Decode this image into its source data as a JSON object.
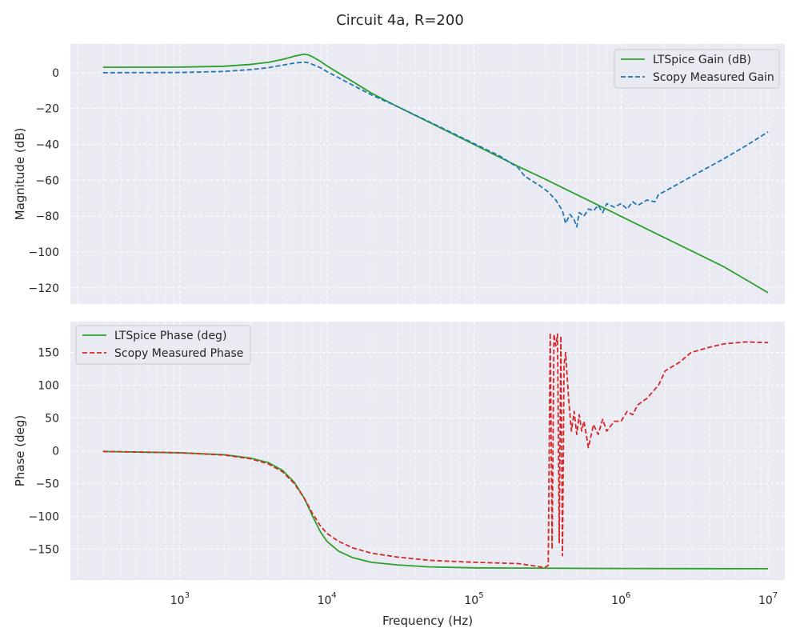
{
  "figure": {
    "title": "Circuit 4a, R=200"
  },
  "chart_data": [
    {
      "type": "line",
      "id": "gain",
      "title": "",
      "xlabel": "",
      "ylabel": "Magnitude (dB)",
      "xscale": "log",
      "xlim": [
        180,
        13000000
      ],
      "ylim": [
        -129,
        16
      ],
      "yticks": [
        0,
        -20,
        -40,
        -60,
        -80,
        -100,
        -120
      ],
      "ytick_labels": [
        "0",
        "−20",
        "−40",
        "−60",
        "−80",
        "−100",
        "−120"
      ],
      "grid": true,
      "legend_position": "top-right",
      "series": [
        {
          "name": "LTSpice Gain (dB)",
          "color": "#2ca02c",
          "style": "solid",
          "points": [
            [
              300,
              3
            ],
            [
              1000,
              3.1
            ],
            [
              2000,
              3.6
            ],
            [
              3000,
              4.6
            ],
            [
              4000,
              5.8
            ],
            [
              5000,
              7.4
            ],
            [
              6000,
              9.2
            ],
            [
              7000,
              10.3
            ],
            [
              7500,
              9.9
            ],
            [
              8000,
              8.8
            ],
            [
              9000,
              6.4
            ],
            [
              10000,
              3.8
            ],
            [
              12000,
              -0.2
            ],
            [
              15000,
              -5
            ],
            [
              20000,
              -11.3
            ],
            [
              30000,
              -18.8
            ],
            [
              50000,
              -27.8
            ],
            [
              100000,
              -40
            ],
            [
              200000,
              -52.3
            ],
            [
              300000,
              -59.1
            ],
            [
              500000,
              -68
            ],
            [
              1000000,
              -80.1
            ],
            [
              2000000,
              -92.2
            ],
            [
              5000000,
              -108.2
            ],
            [
              10000000,
              -122.7
            ]
          ]
        },
        {
          "name": "Scopy Measured Gain",
          "color": "#1f77b4",
          "style": "dashed",
          "points": [
            [
              300,
              0
            ],
            [
              1000,
              0.1
            ],
            [
              2000,
              0.7
            ],
            [
              3000,
              1.7
            ],
            [
              4000,
              2.8
            ],
            [
              5000,
              4.2
            ],
            [
              6000,
              5.4
            ],
            [
              7000,
              5.9
            ],
            [
              7500,
              5.5
            ],
            [
              8000,
              4.6
            ],
            [
              9000,
              2.8
            ],
            [
              10000,
              0.6
            ],
            [
              12000,
              -2.8
            ],
            [
              15000,
              -7
            ],
            [
              20000,
              -12.3
            ],
            [
              30000,
              -18.8
            ],
            [
              50000,
              -27.5
            ],
            [
              100000,
              -39.5
            ],
            [
              150000,
              -46.5
            ],
            [
              200000,
              -53
            ],
            [
              220000,
              -57.5
            ],
            [
              250000,
              -60.5
            ],
            [
              280000,
              -63
            ],
            [
              320000,
              -66.5
            ],
            [
              360000,
              -71
            ],
            [
              400000,
              -77
            ],
            [
              420000,
              -84
            ],
            [
              450000,
              -79
            ],
            [
              480000,
              -82
            ],
            [
              500000,
              -86
            ],
            [
              520000,
              -78
            ],
            [
              560000,
              -80
            ],
            [
              600000,
              -76
            ],
            [
              650000,
              -77
            ],
            [
              700000,
              -74
            ],
            [
              750000,
              -78
            ],
            [
              800000,
              -73
            ],
            [
              900000,
              -75
            ],
            [
              1000000,
              -73
            ],
            [
              1100000,
              -76
            ],
            [
              1200000,
              -72
            ],
            [
              1300000,
              -74
            ],
            [
              1500000,
              -71
            ],
            [
              1700000,
              -72
            ],
            [
              1800000,
              -68
            ],
            [
              2000000,
              -66
            ],
            [
              3000000,
              -58
            ],
            [
              5000000,
              -48
            ],
            [
              7000000,
              -41
            ],
            [
              10000000,
              -33
            ]
          ]
        }
      ]
    },
    {
      "type": "line",
      "id": "phase",
      "title": "",
      "xlabel": "Frequency (Hz)",
      "ylabel": "Phase (deg)",
      "xscale": "log",
      "xlim": [
        180,
        13000000
      ],
      "ylim": [
        -197,
        197
      ],
      "yticks": [
        150,
        100,
        50,
        0,
        -50,
        -100,
        -150
      ],
      "ytick_labels": [
        "150",
        "100",
        "50",
        "0",
        "−50",
        "−100",
        "−150"
      ],
      "xtick_values": [
        1000,
        10000,
        100000,
        1000000,
        10000000
      ],
      "xtick_exponents": [
        "3",
        "4",
        "5",
        "6",
        "7"
      ],
      "xtick_base": "10",
      "grid": true,
      "legend_position": "top-left",
      "series": [
        {
          "name": "LTSpice Phase (deg)",
          "color": "#2ca02c",
          "style": "solid",
          "points": [
            [
              300,
              -1
            ],
            [
              1000,
              -3
            ],
            [
              2000,
              -6
            ],
            [
              3000,
              -11
            ],
            [
              4000,
              -18
            ],
            [
              5000,
              -30
            ],
            [
              6000,
              -48
            ],
            [
              7000,
              -72
            ],
            [
              8000,
              -100
            ],
            [
              9000,
              -123
            ],
            [
              10000,
              -138
            ],
            [
              12000,
              -153
            ],
            [
              15000,
              -163
            ],
            [
              20000,
              -170
            ],
            [
              30000,
              -174
            ],
            [
              50000,
              -177
            ],
            [
              100000,
              -178.5
            ],
            [
              1000000,
              -179.5
            ],
            [
              10000000,
              -179.8
            ]
          ]
        },
        {
          "name": "Scopy Measured Phase",
          "color": "#d62728",
          "style": "dashed",
          "points": [
            [
              300,
              -1
            ],
            [
              1000,
              -3
            ],
            [
              2000,
              -6.5
            ],
            [
              3000,
              -12
            ],
            [
              4000,
              -20
            ],
            [
              5000,
              -32
            ],
            [
              6000,
              -50
            ],
            [
              7000,
              -72
            ],
            [
              8000,
              -96
            ],
            [
              9000,
              -114
            ],
            [
              10000,
              -126
            ],
            [
              12000,
              -138
            ],
            [
              15000,
              -148
            ],
            [
              20000,
              -156
            ],
            [
              30000,
              -162
            ],
            [
              50000,
              -167
            ],
            [
              100000,
              -170
            ],
            [
              200000,
              -172
            ],
            [
              250000,
              -175
            ],
            [
              300000,
              -178
            ],
            [
              320000,
              -175
            ],
            [
              330000,
              180
            ],
            [
              340000,
              -150
            ],
            [
              350000,
              178
            ],
            [
              360000,
              160
            ],
            [
              370000,
              178
            ],
            [
              380000,
              -140
            ],
            [
              390000,
              175
            ],
            [
              400000,
              -160
            ],
            [
              410000,
              130
            ],
            [
              420000,
              150
            ],
            [
              440000,
              80
            ],
            [
              460000,
              30
            ],
            [
              480000,
              60
            ],
            [
              500000,
              25
            ],
            [
              520000,
              55
            ],
            [
              540000,
              30
            ],
            [
              560000,
              45
            ],
            [
              600000,
              5
            ],
            [
              650000,
              40
            ],
            [
              700000,
              25
            ],
            [
              750000,
              48
            ],
            [
              800000,
              30
            ],
            [
              900000,
              45
            ],
            [
              1000000,
              45
            ],
            [
              1100000,
              60
            ],
            [
              1200000,
              55
            ],
            [
              1300000,
              70
            ],
            [
              1500000,
              80
            ],
            [
              1800000,
              100
            ],
            [
              2000000,
              122
            ],
            [
              2500000,
              135
            ],
            [
              3000000,
              150
            ],
            [
              4000000,
              158
            ],
            [
              5000000,
              163
            ],
            [
              7000000,
              166
            ],
            [
              10000000,
              165
            ]
          ]
        }
      ]
    }
  ]
}
